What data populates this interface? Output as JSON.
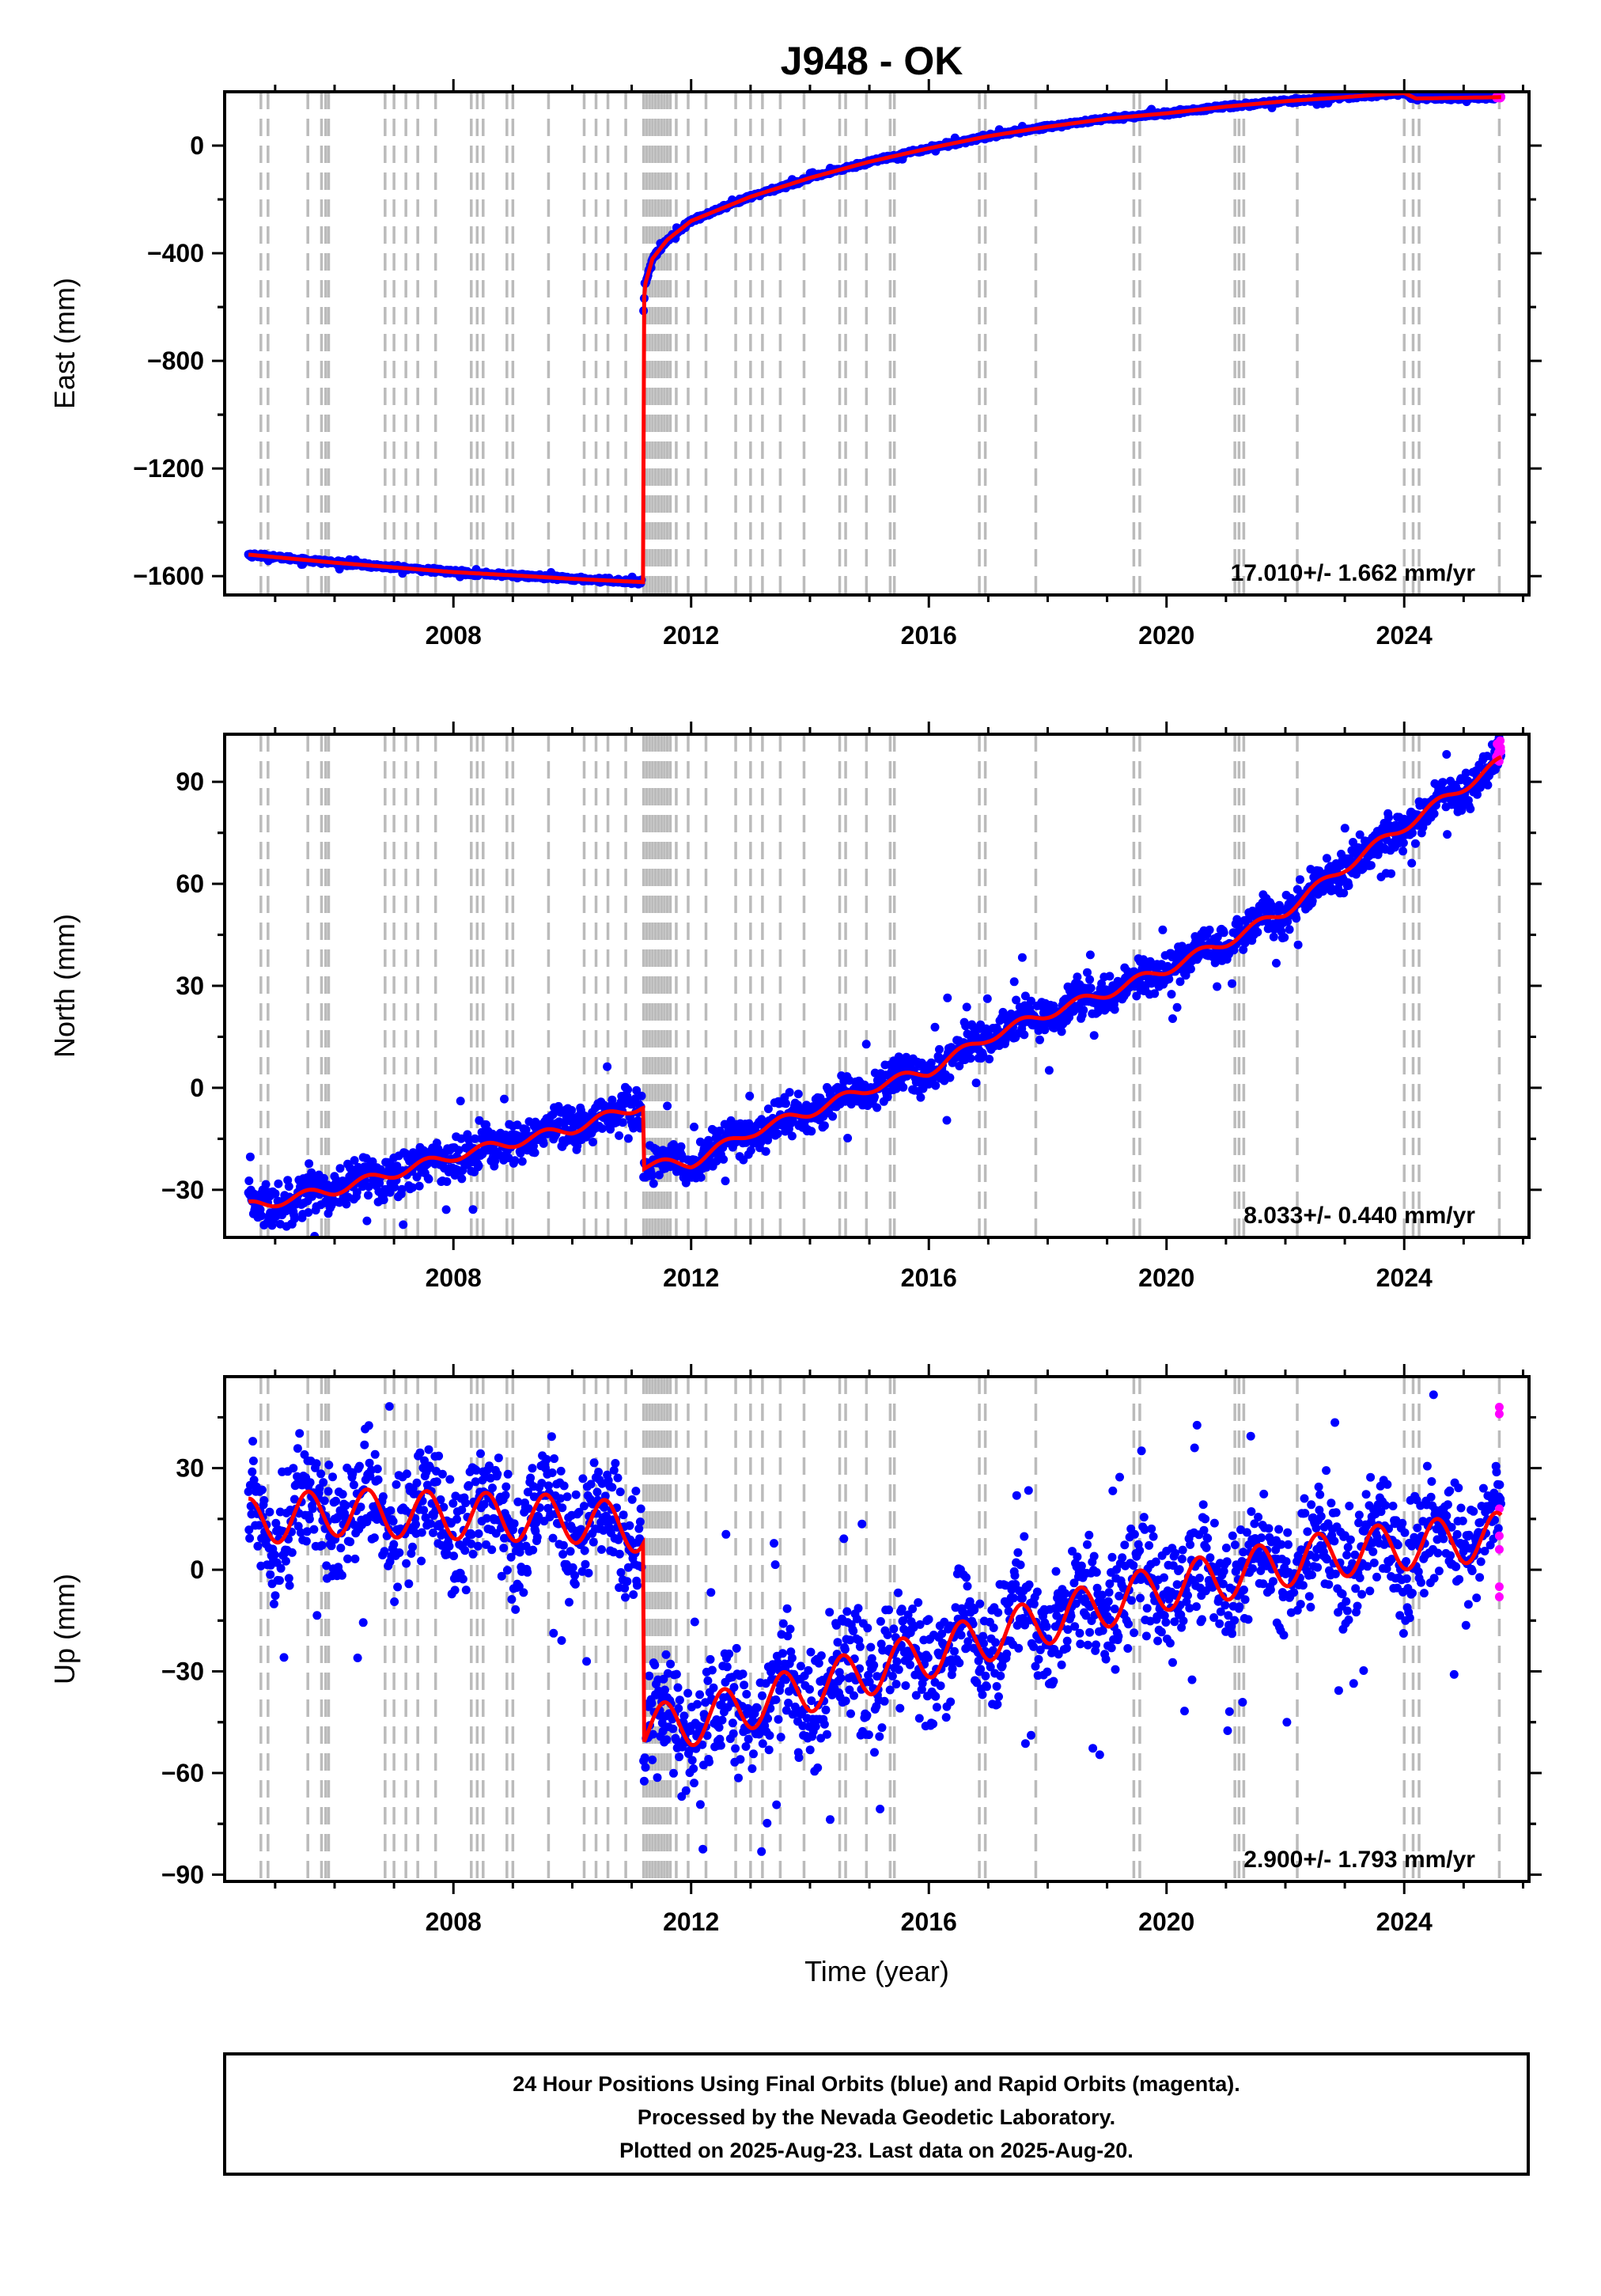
{
  "figure": {
    "title": "J948 - OK",
    "footer": {
      "lines": [
        "24 Hour Positions Using Final Orbits (blue) and Rapid Orbits (magenta).",
        "Processed by the Nevada Geodetic Laboratory.",
        "Plotted on 2025-Aug-23. Last data on 2025-Aug-20."
      ]
    }
  },
  "chart_data": [
    {
      "type": "scatter",
      "panel": "east",
      "title": "J948 - OK",
      "xlabel": "",
      "ylabel": "East (mm)",
      "xlim": [
        2004.15,
        2026.1
      ],
      "ylim": [
        -1670,
        200
      ],
      "xticks": [
        2008,
        2012,
        2016,
        2020,
        2024
      ],
      "yticks": [
        -1600,
        -1200,
        -800,
        -400,
        0
      ],
      "rate_label": "17.010+/- 1.662 mm/yr",
      "colors": {
        "final": "#0000ff",
        "rapid": "#ff00ff",
        "model": "#ff0000",
        "event": "#bbbbbb"
      },
      "data_start": 2004.55,
      "data_end": 2025.63,
      "offset_epoch": 2011.19,
      "series": [
        {
          "role": "final-orbits",
          "noise_mm": 4,
          "x": [
            2004.55,
            2006,
            2008,
            2009,
            2010,
            2011.17
          ],
          "y": [
            -1520,
            -1550,
            -1585,
            -1597,
            -1610,
            -1622
          ]
        },
        {
          "role": "final-orbits",
          "noise_mm": 4,
          "x": [
            2011.2,
            2011.22,
            2011.35,
            2011.6,
            2012,
            2013,
            2014,
            2015,
            2016,
            2017,
            2018,
            2019,
            2020,
            2021,
            2022,
            2023,
            2023.6,
            2024,
            2024.2,
            2025.63
          ],
          "y": [
            -610,
            -520,
            -420,
            -350,
            -280,
            -190,
            -120,
            -60,
            -10,
            35,
            70,
            100,
            120,
            145,
            165,
            180,
            190,
            195,
            175,
            180
          ]
        },
        {
          "role": "rapid-orbits",
          "noise_mm": 2,
          "x": [
            2025.55,
            2025.63
          ],
          "y": [
            180,
            180
          ]
        }
      ],
      "model": {
        "x": [
          2004.55,
          2006,
          2008,
          2009,
          2010,
          2011.17,
          2011.19,
          2011.2,
          2011.22,
          2011.35,
          2011.6,
          2012,
          2013,
          2014,
          2015,
          2016,
          2017,
          2018,
          2019,
          2020,
          2021,
          2022,
          2023,
          2023.6,
          2024,
          2024.2,
          2025.63
        ],
        "y": [
          -1520,
          -1550,
          -1585,
          -1597,
          -1610,
          -1622,
          -1622,
          -610,
          -520,
          -420,
          -350,
          -280,
          -190,
          -120,
          -60,
          -10,
          35,
          70,
          100,
          120,
          145,
          165,
          180,
          190,
          195,
          175,
          180
        ]
      }
    },
    {
      "type": "scatter",
      "panel": "north",
      "xlabel": "",
      "ylabel": "North (mm)",
      "xlim": [
        2004.15,
        2026.1
      ],
      "ylim": [
        -44,
        104
      ],
      "xticks": [
        2008,
        2012,
        2016,
        2020,
        2024
      ],
      "yticks": [
        -30,
        0,
        30,
        60,
        90
      ],
      "rate_label": "8.033+/- 0.440 mm/yr",
      "colors": {
        "final": "#0000ff",
        "rapid": "#ff00ff",
        "model": "#ff0000",
        "event": "#bbbbbb"
      },
      "data_start": 2004.55,
      "data_end": 2025.63,
      "offset_epoch": 2011.19,
      "series": [
        {
          "role": "final-orbits",
          "noise_mm": 3.5,
          "x": [
            2004.55,
            2006,
            2008,
            2010,
            2011.17
          ],
          "y": [
            -35,
            -30,
            -20,
            -12,
            -5
          ]
        },
        {
          "role": "final-orbits",
          "noise_mm": 3,
          "x": [
            2011.2,
            2012,
            2013,
            2014,
            2015,
            2016,
            2017,
            2018,
            2019,
            2020,
            2021,
            2022,
            2023,
            2024,
            2025.63
          ],
          "y": [
            -23,
            -22,
            -13,
            -7,
            0,
            5,
            15,
            22,
            28,
            35,
            43,
            52,
            65,
            77,
            96
          ]
        },
        {
          "role": "rapid-orbits",
          "noise_mm": 2,
          "x": [
            2025.55,
            2025.63
          ],
          "y": [
            96,
            98
          ]
        }
      ],
      "model": {
        "x": [
          2004.55,
          2006,
          2008,
          2010,
          2011.17,
          2011.19,
          2011.2,
          2012,
          2013,
          2014,
          2015,
          2016,
          2017,
          2018,
          2019,
          2020,
          2021,
          2022,
          2023,
          2024,
          2025.63
        ],
        "y": [
          -35,
          -30,
          -20,
          -12,
          -5,
          -5,
          -23,
          -22,
          -13,
          -7,
          0,
          5,
          15,
          22,
          28,
          35,
          43,
          52,
          65,
          77,
          96
        ],
        "seasonal_amplitude_mm": 1.5
      }
    },
    {
      "type": "scatter",
      "panel": "up",
      "xlabel": "Time (year)",
      "ylabel": "Up (mm)",
      "xlim": [
        2004.15,
        2026.1
      ],
      "ylim": [
        -92,
        57
      ],
      "xticks": [
        2008,
        2012,
        2016,
        2020,
        2024
      ],
      "yticks": [
        -90,
        -60,
        -30,
        0,
        30
      ],
      "rate_label": "2.900+/- 1.793 mm/yr",
      "colors": {
        "final": "#0000ff",
        "rapid": "#ff00ff",
        "model": "#ff0000",
        "event": "#bbbbbb"
      },
      "data_start": 2004.55,
      "data_end": 2025.63,
      "offset_epoch": 2011.19,
      "series": [
        {
          "role": "final-orbits",
          "noise_mm": 9,
          "x": [
            2004.55,
            2006,
            2008,
            2010,
            2011.17
          ],
          "y": [
            14,
            17,
            16,
            15,
            12
          ]
        },
        {
          "role": "final-orbits",
          "noise_mm": 9,
          "x": [
            2011.2,
            2012,
            2013,
            2014,
            2015,
            2016,
            2017,
            2018,
            2019,
            2020,
            2021,
            2022,
            2023,
            2024,
            2025.63
          ],
          "y": [
            -47,
            -45,
            -40,
            -35,
            -30,
            -25,
            -20,
            -15,
            -10,
            -5,
            -2,
            2,
            5,
            7,
            10
          ]
        },
        {
          "role": "rapid-orbits",
          "noise_mm": 0,
          "x": [
            2025.6,
            2025.6,
            2025.6,
            2025.6,
            2025.6,
            2025.6,
            2025.6
          ],
          "y": [
            48,
            46,
            18,
            10,
            6,
            -5,
            -8
          ]
        }
      ],
      "model": {
        "x": [
          2004.55,
          2006,
          2008,
          2010,
          2011.17,
          2011.19,
          2011.2,
          2012,
          2013,
          2014,
          2015,
          2016,
          2017,
          2018,
          2019,
          2020,
          2021,
          2022,
          2023,
          2024,
          2025.63
        ],
        "y": [
          14,
          17,
          16,
          15,
          12,
          12,
          -47,
          -45,
          -40,
          -35,
          -30,
          -25,
          -20,
          -15,
          -10,
          -5,
          -2,
          2,
          5,
          7,
          10
        ],
        "seasonal_amplitude_mm": 7
      }
    }
  ],
  "event_lines": [
    2004.76,
    2004.88,
    2005.55,
    2005.78,
    2005.85,
    2005.9,
    2006.85,
    2007.0,
    2007.2,
    2007.4,
    2007.7,
    2008.3,
    2008.4,
    2008.5,
    2008.9,
    2009.0,
    2009.6,
    2010.2,
    2010.4,
    2010.6,
    2010.9,
    2011.2,
    2011.25,
    2011.3,
    2011.35,
    2011.4,
    2011.45,
    2011.5,
    2011.55,
    2011.6,
    2011.65,
    2011.75,
    2011.95,
    2012.25,
    2012.75,
    2013.0,
    2013.2,
    2013.5,
    2013.9,
    2014.5,
    2014.6,
    2014.95,
    2015.35,
    2015.42,
    2016.85,
    2016.95,
    2017.8,
    2019.45,
    2019.55,
    2021.15,
    2021.22,
    2021.3,
    2022.2,
    2024.0,
    2024.15,
    2024.25,
    2025.6
  ]
}
